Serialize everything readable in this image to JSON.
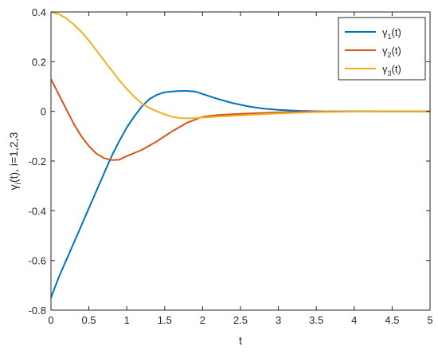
{
  "chart_data": {
    "type": "line",
    "title": "",
    "xlabel": "t",
    "ylabel_main": "γ",
    "ylabel_sub": "i",
    "ylabel_rest": "(t), i=1,2,3",
    "xlim": [
      0,
      5
    ],
    "ylim": [
      -0.8,
      0.4
    ],
    "xticks": [
      0,
      0.5,
      1,
      1.5,
      2,
      2.5,
      3,
      3.5,
      4,
      4.5,
      5
    ],
    "xtick_labels": [
      "0",
      "0.5",
      "1",
      "1.5",
      "2",
      "2.5",
      "3",
      "3.5",
      "4",
      "4.5",
      "5"
    ],
    "yticks": [
      -0.8,
      -0.6,
      -0.4,
      -0.2,
      0,
      0.2,
      0.4
    ],
    "ytick_labels": [
      "-0.8",
      "-0.6",
      "-0.4",
      "-0.2",
      "0",
      "0.2",
      "0.4"
    ],
    "grid": false,
    "legend_position": "top-right",
    "series": [
      {
        "name_main": "γ",
        "name_sub": "1",
        "name_rest": "(t)",
        "color": "#0072BD",
        "x": [
          0,
          0.1,
          0.2,
          0.3,
          0.4,
          0.5,
          0.6,
          0.7,
          0.8,
          0.9,
          1.0,
          1.1,
          1.2,
          1.3,
          1.4,
          1.5,
          1.6,
          1.7,
          1.8,
          1.9,
          2.0,
          2.2,
          2.4,
          2.6,
          2.8,
          3.0,
          3.2,
          3.4,
          3.6,
          3.8,
          4.0,
          4.5,
          5.0
        ],
        "y": [
          -0.75,
          -0.67,
          -0.6,
          -0.53,
          -0.46,
          -0.39,
          -0.32,
          -0.25,
          -0.18,
          -0.12,
          -0.065,
          -0.02,
          0.02,
          0.05,
          0.067,
          0.077,
          0.08,
          0.082,
          0.082,
          0.08,
          0.07,
          0.05,
          0.033,
          0.02,
          0.011,
          0.006,
          0.003,
          0.001,
          0.0,
          0.0,
          0.0,
          0.0,
          0.0
        ]
      },
      {
        "name_main": "γ",
        "name_sub": "2",
        "name_rest": "(t)",
        "color": "#D95319",
        "x": [
          0,
          0.1,
          0.2,
          0.3,
          0.4,
          0.5,
          0.6,
          0.7,
          0.8,
          0.9,
          1.0,
          1.2,
          1.4,
          1.6,
          1.8,
          2.0,
          2.2,
          2.5,
          3.0,
          3.5,
          4.0,
          4.5,
          5.0
        ],
        "y": [
          0.13,
          0.07,
          0.01,
          -0.05,
          -0.1,
          -0.14,
          -0.17,
          -0.188,
          -0.196,
          -0.195,
          -0.18,
          -0.155,
          -0.12,
          -0.08,
          -0.045,
          -0.022,
          -0.015,
          -0.01,
          -0.004,
          -0.001,
          0.0,
          0.0,
          0.0
        ]
      },
      {
        "name_main": "γ",
        "name_sub": "3",
        "name_rest": "(t)",
        "color": "#EDB120",
        "x": [
          0,
          0.1,
          0.2,
          0.3,
          0.4,
          0.5,
          0.6,
          0.7,
          0.8,
          0.9,
          1.0,
          1.1,
          1.2,
          1.3,
          1.4,
          1.5,
          1.6,
          1.7,
          1.8,
          1.9,
          2.0,
          2.2,
          2.5,
          3.0,
          3.5,
          4.0,
          4.5,
          5.0
        ],
        "y": [
          0.4,
          0.392,
          0.375,
          0.35,
          0.32,
          0.285,
          0.245,
          0.205,
          0.165,
          0.125,
          0.09,
          0.058,
          0.032,
          0.013,
          0.0,
          -0.012,
          -0.022,
          -0.027,
          -0.028,
          -0.027,
          -0.025,
          -0.021,
          -0.016,
          -0.008,
          -0.003,
          -0.001,
          0.0,
          0.0
        ]
      }
    ]
  }
}
